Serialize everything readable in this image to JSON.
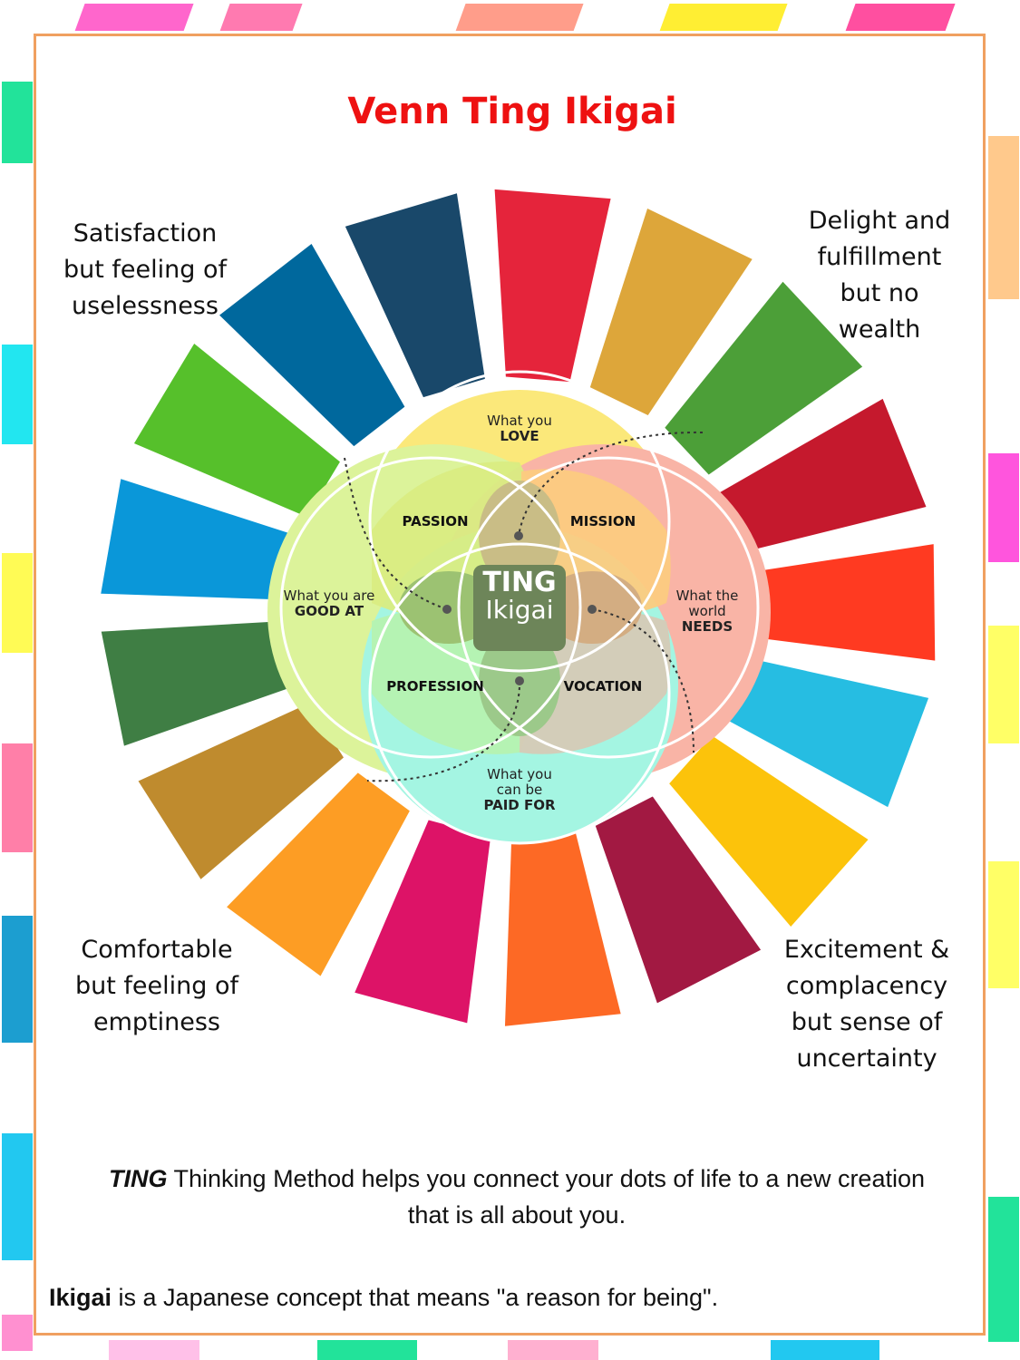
{
  "page": {
    "title": "Venn Ting Ikigai"
  },
  "corners": {
    "top_left": [
      "Satisfaction",
      "but feeling of",
      "uselessness"
    ],
    "top_right": [
      "Delight and",
      "fulfillment",
      "but no",
      "wealth"
    ],
    "bottom_left": [
      "Comfortable",
      "but feeling of",
      "emptiness"
    ],
    "bottom_right": [
      "Excitement &",
      "complacency",
      "but sense of",
      "uncertainty"
    ]
  },
  "venn": {
    "love": {
      "line1": "What you",
      "line2": "LOVE"
    },
    "good_at": {
      "line1": "What you are",
      "line2": "GOOD AT"
    },
    "world_needs": {
      "line1": "What the",
      "line2": "world",
      "line3": "NEEDS"
    },
    "paid_for": {
      "line1": "What you",
      "line2": "can be",
      "line3": "PAID FOR"
    },
    "passion": "PASSION",
    "mission": "MISSION",
    "profession": "PROFESSION",
    "vocation": "VOCATION",
    "center_line1": "TING",
    "center_line2": "Ikigai"
  },
  "footer": {
    "ting_emphasis": "TING",
    "ting_rest": " Thinking Method helps you connect your dots of life to a new creation",
    "ting_line2": "that is all about you.",
    "ikigai_bold": "Ikigai",
    "ikigai_rest": " is a Japanese concept that means \"a reason for being\"."
  },
  "colors": {
    "title": "#ee1111",
    "border": "#f0a060",
    "wheel_segments": [
      "#e5243b",
      "#dda63a",
      "#4c9f38",
      "#c5192d",
      "#ff3a21",
      "#26bde2",
      "#fcc30b",
      "#a21942",
      "#fd6925",
      "#dd1367",
      "#fd9d24",
      "#bf8b2e",
      "#3f7e44",
      "#0a97d9",
      "#56c02b",
      "#00689d",
      "#19486a"
    ],
    "love": "#fbe87a",
    "good_at": "#dcf39a",
    "world_needs": "#f9b4a6",
    "paid_for": "#a4f5e2",
    "passion": "#d9ec82",
    "mission": "#fccb80",
    "profession": "#b6f2b0",
    "vocation": "#d6cab6",
    "center": "#6d8559"
  }
}
